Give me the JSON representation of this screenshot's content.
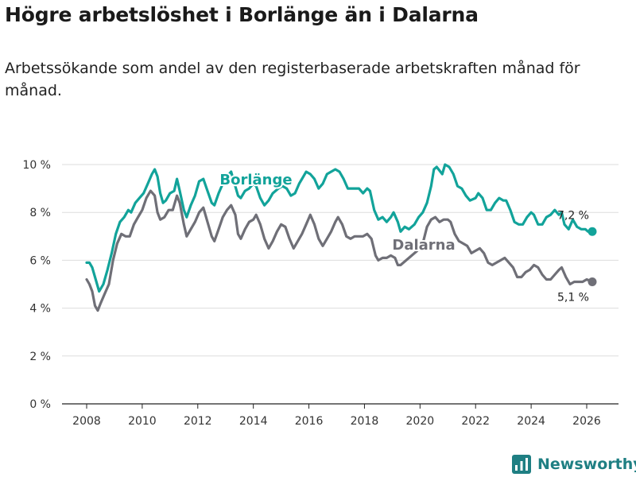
{
  "title": "Högre arbetslöshet i Borlänge än i Dalarna",
  "subtitle": "Arbetssökande som andel av den registerbaserade arbetskraften månad för månad.",
  "brand": {
    "name": "Newsworthy",
    "icon": "bar-chart-logo-icon"
  },
  "colors": {
    "borlange": "#12a39a",
    "dalarna": "#6f6f77",
    "grid": "#dddddd",
    "axis": "#222222",
    "brand": "#1f7f83"
  },
  "chart_data": {
    "type": "line",
    "title": "Högre arbetslöshet i Borlänge än i Dalarna",
    "xlabel": "",
    "ylabel": "",
    "xlim": [
      2007.5,
      2026.9
    ],
    "ylim": [
      0,
      10
    ],
    "y_ticks": [
      0,
      2,
      4,
      6,
      8,
      10
    ],
    "y_tick_labels": [
      "0 %",
      "2 %",
      "4 %",
      "6 %",
      "8 %",
      "10 %"
    ],
    "x_ticks": [
      2008,
      2010,
      2012,
      2014,
      2016,
      2018,
      2020,
      2022,
      2024,
      2026
    ],
    "x_tick_labels": [
      "2008",
      "2010",
      "2012",
      "2014",
      "2016",
      "2018",
      "2020",
      "2022",
      "2024",
      "2026"
    ],
    "grid": true,
    "series": [
      {
        "name": "Borlänge",
        "end_label": "7,2 %",
        "points": [
          [
            2008.0,
            5.9
          ],
          [
            2008.1,
            5.9
          ],
          [
            2008.2,
            5.7
          ],
          [
            2008.3,
            5.3
          ],
          [
            2008.45,
            4.7
          ],
          [
            2008.6,
            5.0
          ],
          [
            2008.75,
            5.6
          ],
          [
            2008.9,
            6.3
          ],
          [
            2009.05,
            7.1
          ],
          [
            2009.2,
            7.6
          ],
          [
            2009.35,
            7.8
          ],
          [
            2009.5,
            8.1
          ],
          [
            2009.6,
            8.0
          ],
          [
            2009.75,
            8.4
          ],
          [
            2009.9,
            8.6
          ],
          [
            2010.05,
            8.8
          ],
          [
            2010.2,
            9.2
          ],
          [
            2010.35,
            9.6
          ],
          [
            2010.45,
            9.8
          ],
          [
            2010.55,
            9.5
          ],
          [
            2010.65,
            8.8
          ],
          [
            2010.75,
            8.4
          ],
          [
            2010.85,
            8.5
          ],
          [
            2011.0,
            8.8
          ],
          [
            2011.15,
            8.9
          ],
          [
            2011.25,
            9.4
          ],
          [
            2011.35,
            8.9
          ],
          [
            2011.5,
            8.1
          ],
          [
            2011.6,
            7.8
          ],
          [
            2011.75,
            8.3
          ],
          [
            2011.9,
            8.7
          ],
          [
            2012.05,
            9.3
          ],
          [
            2012.2,
            9.4
          ],
          [
            2012.35,
            8.9
          ],
          [
            2012.5,
            8.4
          ],
          [
            2012.6,
            8.3
          ],
          [
            2012.75,
            8.8
          ],
          [
            2012.9,
            9.2
          ],
          [
            2013.05,
            9.5
          ],
          [
            2013.2,
            9.7
          ],
          [
            2013.3,
            9.3
          ],
          [
            2013.45,
            8.7
          ],
          [
            2013.55,
            8.6
          ],
          [
            2013.7,
            8.9
          ],
          [
            2013.85,
            9.0
          ],
          [
            2014.0,
            9.2
          ],
          [
            2014.1,
            9.1
          ],
          [
            2014.25,
            8.6
          ],
          [
            2014.4,
            8.3
          ],
          [
            2014.55,
            8.5
          ],
          [
            2014.7,
            8.8
          ],
          [
            2014.9,
            9.0
          ],
          [
            2015.05,
            9.1
          ],
          [
            2015.2,
            9.0
          ],
          [
            2015.35,
            8.7
          ],
          [
            2015.5,
            8.8
          ],
          [
            2015.65,
            9.2
          ],
          [
            2015.8,
            9.5
          ],
          [
            2015.9,
            9.7
          ],
          [
            2016.05,
            9.6
          ],
          [
            2016.2,
            9.4
          ],
          [
            2016.35,
            9.0
          ],
          [
            2016.5,
            9.2
          ],
          [
            2016.65,
            9.6
          ],
          [
            2016.8,
            9.7
          ],
          [
            2016.95,
            9.8
          ],
          [
            2017.1,
            9.7
          ],
          [
            2017.25,
            9.4
          ],
          [
            2017.4,
            9.0
          ],
          [
            2017.6,
            9.0
          ],
          [
            2017.8,
            9.0
          ],
          [
            2017.95,
            8.8
          ],
          [
            2018.1,
            9.0
          ],
          [
            2018.2,
            8.9
          ],
          [
            2018.35,
            8.1
          ],
          [
            2018.5,
            7.7
          ],
          [
            2018.65,
            7.8
          ],
          [
            2018.8,
            7.6
          ],
          [
            2018.95,
            7.8
          ],
          [
            2019.05,
            8.0
          ],
          [
            2019.2,
            7.6
          ],
          [
            2019.3,
            7.2
          ],
          [
            2019.45,
            7.4
          ],
          [
            2019.6,
            7.3
          ],
          [
            2019.8,
            7.5
          ],
          [
            2019.95,
            7.8
          ],
          [
            2020.1,
            8.0
          ],
          [
            2020.25,
            8.4
          ],
          [
            2020.4,
            9.1
          ],
          [
            2020.5,
            9.8
          ],
          [
            2020.6,
            9.9
          ],
          [
            2020.8,
            9.6
          ],
          [
            2020.9,
            10.0
          ],
          [
            2021.05,
            9.9
          ],
          [
            2021.2,
            9.6
          ],
          [
            2021.35,
            9.1
          ],
          [
            2021.5,
            9.0
          ],
          [
            2021.65,
            8.7
          ],
          [
            2021.8,
            8.5
          ],
          [
            2022.0,
            8.6
          ],
          [
            2022.1,
            8.8
          ],
          [
            2022.25,
            8.6
          ],
          [
            2022.4,
            8.1
          ],
          [
            2022.55,
            8.1
          ],
          [
            2022.7,
            8.4
          ],
          [
            2022.85,
            8.6
          ],
          [
            2023.0,
            8.5
          ],
          [
            2023.1,
            8.5
          ],
          [
            2023.25,
            8.1
          ],
          [
            2023.4,
            7.6
          ],
          [
            2023.55,
            7.5
          ],
          [
            2023.7,
            7.5
          ],
          [
            2023.85,
            7.8
          ],
          [
            2024.0,
            8.0
          ],
          [
            2024.1,
            7.9
          ],
          [
            2024.25,
            7.5
          ],
          [
            2024.4,
            7.5
          ],
          [
            2024.55,
            7.8
          ],
          [
            2024.7,
            7.9
          ],
          [
            2024.85,
            8.1
          ],
          [
            2025.0,
            7.9
          ],
          [
            2025.1,
            8.0
          ],
          [
            2025.2,
            7.5
          ],
          [
            2025.35,
            7.3
          ],
          [
            2025.5,
            7.7
          ],
          [
            2025.65,
            7.4
          ],
          [
            2025.8,
            7.3
          ],
          [
            2025.95,
            7.3
          ],
          [
            2026.05,
            7.2
          ],
          [
            2026.2,
            7.2
          ]
        ]
      },
      {
        "name": "Dalarna",
        "end_label": "5,1 %",
        "points": [
          [
            2008.0,
            5.2
          ],
          [
            2008.1,
            5.0
          ],
          [
            2008.2,
            4.7
          ],
          [
            2008.3,
            4.1
          ],
          [
            2008.4,
            3.9
          ],
          [
            2008.5,
            4.2
          ],
          [
            2008.65,
            4.6
          ],
          [
            2008.8,
            5.0
          ],
          [
            2008.95,
            6.0
          ],
          [
            2009.1,
            6.7
          ],
          [
            2009.25,
            7.1
          ],
          [
            2009.4,
            7.0
          ],
          [
            2009.55,
            7.0
          ],
          [
            2009.7,
            7.5
          ],
          [
            2009.85,
            7.8
          ],
          [
            2010.0,
            8.1
          ],
          [
            2010.15,
            8.6
          ],
          [
            2010.3,
            8.9
          ],
          [
            2010.45,
            8.7
          ],
          [
            2010.55,
            8.0
          ],
          [
            2010.65,
            7.7
          ],
          [
            2010.8,
            7.8
          ],
          [
            2010.95,
            8.1
          ],
          [
            2011.1,
            8.1
          ],
          [
            2011.25,
            8.7
          ],
          [
            2011.35,
            8.4
          ],
          [
            2011.5,
            7.5
          ],
          [
            2011.6,
            7.0
          ],
          [
            2011.75,
            7.3
          ],
          [
            2011.9,
            7.6
          ],
          [
            2012.05,
            8.0
          ],
          [
            2012.2,
            8.2
          ],
          [
            2012.35,
            7.6
          ],
          [
            2012.5,
            7.0
          ],
          [
            2012.6,
            6.8
          ],
          [
            2012.75,
            7.3
          ],
          [
            2012.9,
            7.8
          ],
          [
            2013.05,
            8.1
          ],
          [
            2013.2,
            8.3
          ],
          [
            2013.35,
            7.9
          ],
          [
            2013.45,
            7.1
          ],
          [
            2013.55,
            6.9
          ],
          [
            2013.7,
            7.3
          ],
          [
            2013.85,
            7.6
          ],
          [
            2014.0,
            7.7
          ],
          [
            2014.1,
            7.9
          ],
          [
            2014.25,
            7.5
          ],
          [
            2014.4,
            6.9
          ],
          [
            2014.55,
            6.5
          ],
          [
            2014.7,
            6.8
          ],
          [
            2014.85,
            7.2
          ],
          [
            2015.0,
            7.5
          ],
          [
            2015.15,
            7.4
          ],
          [
            2015.3,
            6.9
          ],
          [
            2015.45,
            6.5
          ],
          [
            2015.6,
            6.8
          ],
          [
            2015.75,
            7.1
          ],
          [
            2015.9,
            7.5
          ],
          [
            2016.05,
            7.9
          ],
          [
            2016.2,
            7.5
          ],
          [
            2016.35,
            6.9
          ],
          [
            2016.5,
            6.6
          ],
          [
            2016.65,
            6.9
          ],
          [
            2016.8,
            7.2
          ],
          [
            2016.95,
            7.6
          ],
          [
            2017.05,
            7.8
          ],
          [
            2017.2,
            7.5
          ],
          [
            2017.35,
            7.0
          ],
          [
            2017.5,
            6.9
          ],
          [
            2017.65,
            7.0
          ],
          [
            2017.8,
            7.0
          ],
          [
            2017.95,
            7.0
          ],
          [
            2018.1,
            7.1
          ],
          [
            2018.25,
            6.9
          ],
          [
            2018.4,
            6.2
          ],
          [
            2018.5,
            6.0
          ],
          [
            2018.65,
            6.1
          ],
          [
            2018.8,
            6.1
          ],
          [
            2018.95,
            6.2
          ],
          [
            2019.1,
            6.1
          ],
          [
            2019.2,
            5.8
          ],
          [
            2019.3,
            5.8
          ],
          [
            2019.5,
            6.0
          ],
          [
            2019.7,
            6.2
          ],
          [
            2019.9,
            6.4
          ],
          [
            2020.1,
            6.7
          ],
          [
            2020.25,
            7.4
          ],
          [
            2020.4,
            7.7
          ],
          [
            2020.55,
            7.8
          ],
          [
            2020.7,
            7.6
          ],
          [
            2020.85,
            7.7
          ],
          [
            2021.0,
            7.7
          ],
          [
            2021.1,
            7.6
          ],
          [
            2021.25,
            7.1
          ],
          [
            2021.4,
            6.8
          ],
          [
            2021.55,
            6.7
          ],
          [
            2021.7,
            6.6
          ],
          [
            2021.85,
            6.3
          ],
          [
            2022.0,
            6.4
          ],
          [
            2022.15,
            6.5
          ],
          [
            2022.3,
            6.3
          ],
          [
            2022.45,
            5.9
          ],
          [
            2022.6,
            5.8
          ],
          [
            2022.75,
            5.9
          ],
          [
            2022.9,
            6.0
          ],
          [
            2023.05,
            6.1
          ],
          [
            2023.2,
            5.9
          ],
          [
            2023.35,
            5.7
          ],
          [
            2023.5,
            5.3
          ],
          [
            2023.65,
            5.3
          ],
          [
            2023.8,
            5.5
          ],
          [
            2023.95,
            5.6
          ],
          [
            2024.1,
            5.8
          ],
          [
            2024.25,
            5.7
          ],
          [
            2024.4,
            5.4
          ],
          [
            2024.55,
            5.2
          ],
          [
            2024.7,
            5.2
          ],
          [
            2024.85,
            5.4
          ],
          [
            2025.0,
            5.6
          ],
          [
            2025.1,
            5.7
          ],
          [
            2025.25,
            5.3
          ],
          [
            2025.4,
            5.0
          ],
          [
            2025.55,
            5.1
          ],
          [
            2025.7,
            5.1
          ],
          [
            2025.85,
            5.1
          ],
          [
            2026.0,
            5.2
          ],
          [
            2026.2,
            5.1
          ]
        ]
      }
    ]
  }
}
